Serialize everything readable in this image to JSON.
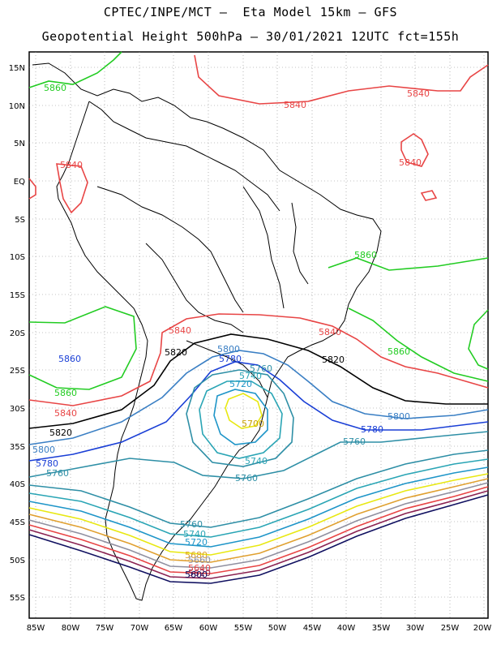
{
  "header": {
    "line1": "CPTEC/INPE/MCT –  Eta Model 15km – GFS",
    "line2": "Geopotential Height 500hPa – 30/01/2021 12UTC fct=155h"
  },
  "axes": {
    "lat_labels": [
      "15N",
      "10N",
      "5N",
      "EQ",
      "5S",
      "10S",
      "15S",
      "20S",
      "25S",
      "30S",
      "35S",
      "40S",
      "45S",
      "50S",
      "55S"
    ],
    "lon_labels": [
      "85W",
      "80W",
      "75W",
      "70W",
      "65W",
      "60W",
      "55W",
      "50W",
      "45W",
      "40W",
      "35W",
      "30W",
      "25W",
      "20W"
    ]
  },
  "legend_colors": {
    "5860": "#22cc22",
    "5840": "#e84545",
    "5820": "#000000",
    "5800": "#3a7fc4",
    "5780": "#1a3fd6",
    "5760": "#2e8fa6",
    "5740": "#2aa5b5",
    "5720": "#1e95c8",
    "5700": "#e8e812"
  },
  "contour_labels": {
    "c5860": "5860",
    "c5840": "5840",
    "c5820": "5820",
    "c5800": "5800",
    "c5780": "5780",
    "c5760": "5760",
    "c5740": "5740",
    "c5720": "5720",
    "c5700": "5700",
    "c5680": "5680",
    "c5660": "5660",
    "c5640": "5640",
    "c5620": "5620",
    "c5600": "5600"
  }
}
